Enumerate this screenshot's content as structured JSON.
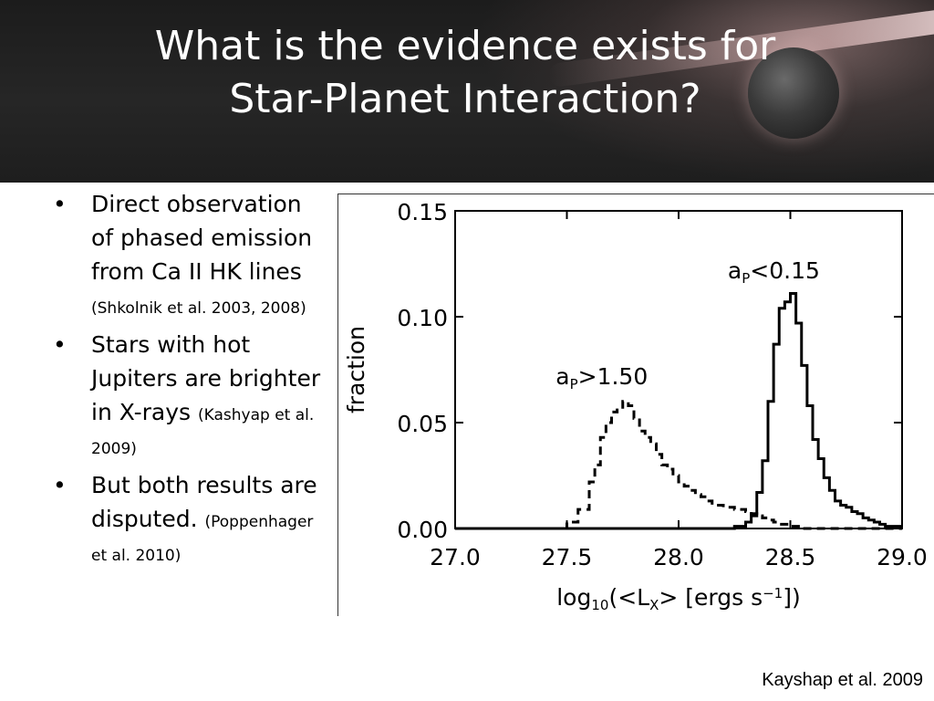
{
  "slide": {
    "title_lines": [
      "What is the evidence exists for",
      "Star-Planet Interaction?"
    ],
    "bullets": [
      {
        "text": "Direct observation of phased emission from  Ca II HK lines ",
        "cite": "(Shkolnik et al. 2003, 2008)"
      },
      {
        "text": "Stars with hot Jupiters are brighter in X-rays ",
        "cite": "(Kashyap et al. 2009)"
      },
      {
        "text": "But both results are disputed. ",
        "cite": "(Poppenhager et al. 2010)"
      }
    ],
    "source": "Kayshap et al. 2009"
  },
  "chart_data": {
    "type": "line",
    "ylabel": "fraction",
    "xlabel_parts": {
      "pre": "log",
      "sub": "10",
      "mid": "(<L",
      "sub2": "X",
      "post": "> [ergs s",
      "sup": "−1",
      "end": "])"
    },
    "xlim": [
      27.0,
      29.0
    ],
    "ylim": [
      0.0,
      0.15
    ],
    "x_ticks": [
      "27.0",
      "27.5",
      "28.0",
      "28.5",
      "29.0"
    ],
    "y_ticks": [
      "0.00",
      "0.05",
      "0.10",
      "0.15"
    ],
    "annotations": [
      {
        "text_pre": "a",
        "sub": "P",
        "text_post": "<0.15",
        "near_series": 1
      },
      {
        "text_pre": "a",
        "sub": "P",
        "text_post": ">1.50",
        "near_series": 0
      }
    ],
    "series": [
      {
        "style": "dashed",
        "x": [
          27.0,
          27.3,
          27.45,
          27.5,
          27.55,
          27.6,
          27.625,
          27.65,
          27.675,
          27.7,
          27.725,
          27.75,
          27.775,
          27.8,
          27.825,
          27.85,
          27.875,
          27.9,
          27.925,
          27.95,
          27.975,
          28.0,
          28.025,
          28.05,
          28.075,
          28.1,
          28.125,
          28.15,
          28.175,
          28.2,
          28.225,
          28.25,
          28.275,
          28.3,
          28.325,
          28.35,
          28.375,
          28.4,
          28.425,
          28.45,
          28.475,
          28.5,
          28.55,
          29.0
        ],
        "y": [
          0.0,
          0.0,
          0.0,
          0.003,
          0.009,
          0.022,
          0.03,
          0.043,
          0.05,
          0.055,
          0.056,
          0.06,
          0.058,
          0.052,
          0.046,
          0.043,
          0.04,
          0.035,
          0.03,
          0.028,
          0.025,
          0.022,
          0.02,
          0.018,
          0.016,
          0.015,
          0.013,
          0.011,
          0.011,
          0.01,
          0.01,
          0.009,
          0.009,
          0.008,
          0.007,
          0.006,
          0.005,
          0.004,
          0.003,
          0.002,
          0.002,
          0.001,
          0.0,
          0.0
        ]
      },
      {
        "style": "solid",
        "x": [
          27.0,
          28.2,
          28.25,
          28.3,
          28.325,
          28.35,
          28.375,
          28.4,
          28.425,
          28.45,
          28.475,
          28.5,
          28.525,
          28.55,
          28.575,
          28.6,
          28.625,
          28.65,
          28.675,
          28.7,
          28.725,
          28.75,
          28.775,
          28.8,
          28.825,
          28.85,
          28.875,
          28.9,
          28.925,
          29.0
        ],
        "y": [
          0.0,
          0.0,
          0.001,
          0.003,
          0.006,
          0.017,
          0.032,
          0.06,
          0.087,
          0.104,
          0.107,
          0.111,
          0.097,
          0.077,
          0.058,
          0.042,
          0.033,
          0.024,
          0.018,
          0.013,
          0.011,
          0.01,
          0.008,
          0.007,
          0.005,
          0.004,
          0.003,
          0.002,
          0.001,
          0.001
        ]
      }
    ]
  }
}
